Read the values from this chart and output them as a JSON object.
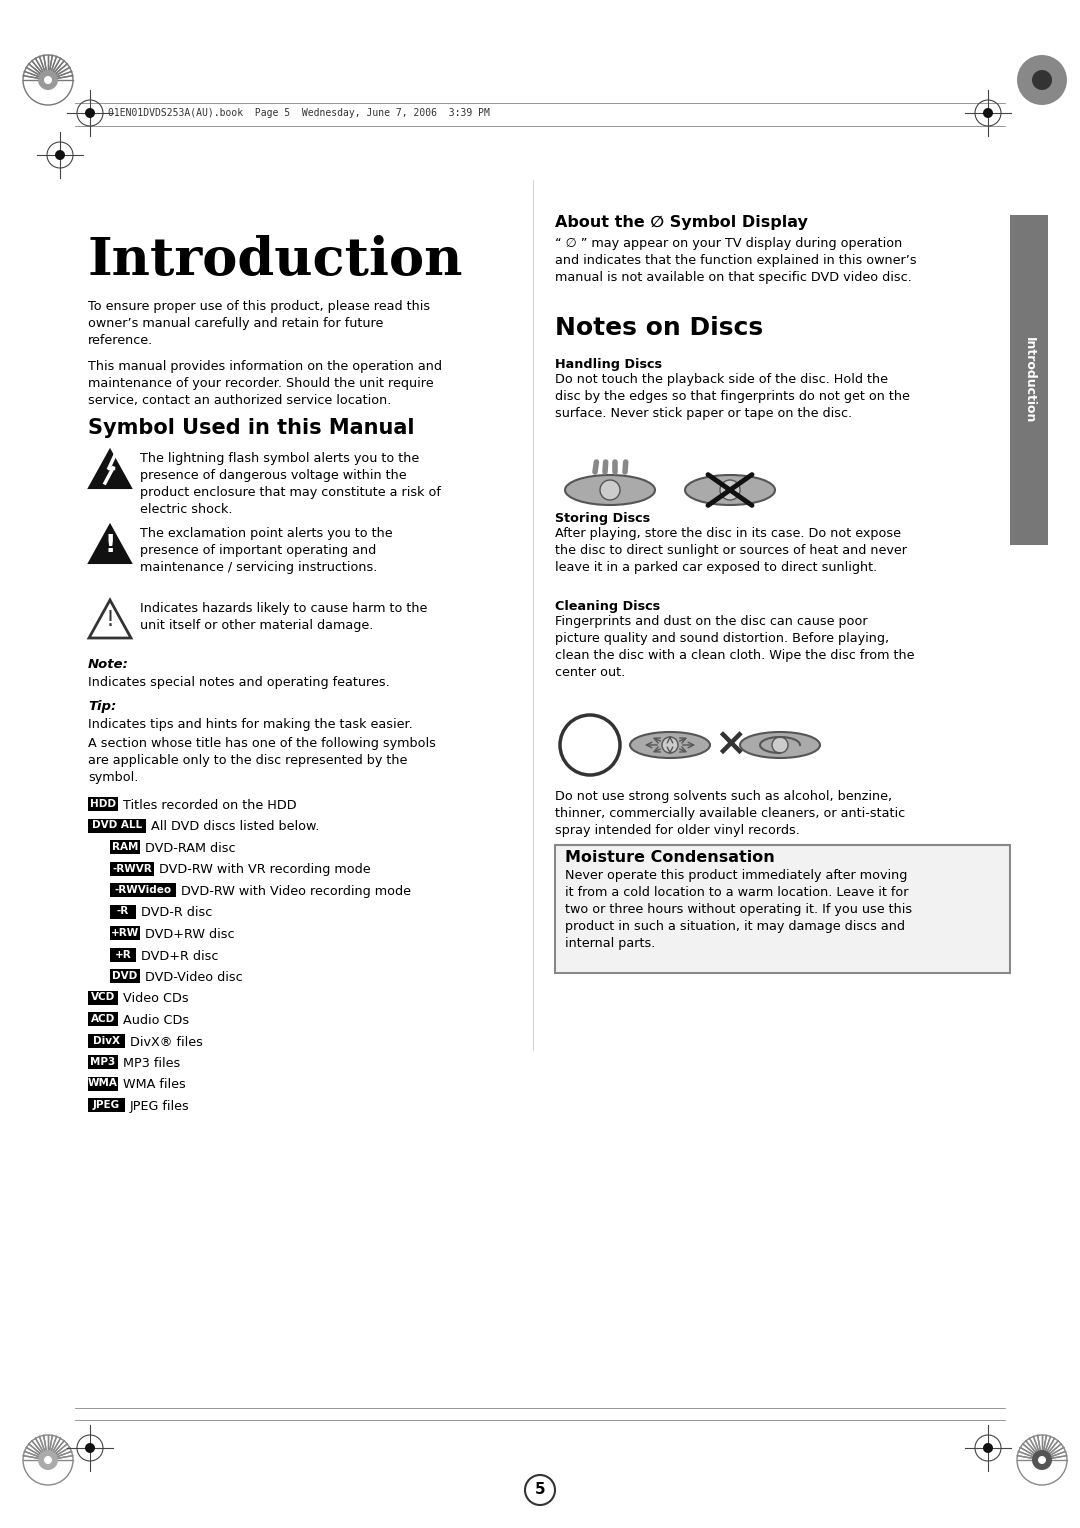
{
  "bg_color": "#ffffff",
  "page_header_text": "01EN01DVDS253A(AU).book  Page 5  Wednesday, June 7, 2006  3:39 PM",
  "main_title": "Introduction",
  "intro_para1": "To ensure proper use of this product, please read this\nowner’s manual carefully and retain for future\nreference.",
  "intro_para2": "This manual provides information on the operation and\nmaintenance of your recorder. Should the unit require\nservice, contact an authorized service location.",
  "section1_title": "Symbol Used in this Manual",
  "symbol1_text": "The lightning flash symbol alerts you to the\npresence of dangerous voltage within the\nproduct enclosure that may constitute a risk of\nelectric shock.",
  "symbol2_text": "The exclamation point alerts you to the\npresence of important operating and\nmaintenance / servicing instructions.",
  "symbol3_text": "Indicates hazards likely to cause harm to the\nunit itself or other material damage.",
  "note_label": "Note:",
  "note_text": "Indicates special notes and operating features.",
  "tip_label": "Tip:",
  "tip_text": "Indicates tips and hints for making the task easier.",
  "section_intro_text": "A section whose title has one of the following symbols\nare applicable only to the disc represented by the\nsymbol.",
  "disc_items": [
    {
      "badge": "HDD",
      "text": "Titles recorded on the HDD",
      "indent": 0
    },
    {
      "badge": "DVD ALL",
      "text": "All DVD discs listed below.",
      "indent": 0
    },
    {
      "badge": "RAM",
      "text": "DVD-RAM disc",
      "indent": 1
    },
    {
      "badge": "-RWVR",
      "text": "DVD-RW with VR recording mode",
      "indent": 1
    },
    {
      "badge": "-RWVideo",
      "text": "DVD-RW with Video recording mode",
      "indent": 1
    },
    {
      "badge": "-R",
      "text": "DVD-R disc",
      "indent": 1
    },
    {
      "badge": "+RW",
      "text": "DVD+RW disc",
      "indent": 1
    },
    {
      "badge": "+R",
      "text": "DVD+R disc",
      "indent": 1
    },
    {
      "badge": "DVD",
      "text": "DVD-Video disc",
      "indent": 1
    },
    {
      "badge": "VCD",
      "text": "Video CDs",
      "indent": 0
    },
    {
      "badge": "ACD",
      "text": "Audio CDs",
      "indent": 0
    },
    {
      "badge": "DivX",
      "text": "DivX® files",
      "indent": 0
    },
    {
      "badge": "MP3",
      "text": "MP3 files",
      "indent": 0
    },
    {
      "badge": "WMA",
      "text": "WMA files",
      "indent": 0
    },
    {
      "badge": "JPEG",
      "text": "JPEG files",
      "indent": 0
    }
  ],
  "right_section2_title": "About the ∅ Symbol Display",
  "right_section2_text": "“ ∅ ” may appear on your TV display during operation\nand indicates that the function explained in this owner’s\nmanual is not available on that specific DVD video disc.",
  "right_section3_title": "Notes on Discs",
  "handling_title": "Handling Discs",
  "handling_text": "Do not touch the playback side of the disc. Hold the\ndisc by the edges so that fingerprints do not get on the\nsurface. Never stick paper or tape on the disc.",
  "storing_title": "Storing Discs",
  "storing_text": "After playing, store the disc in its case. Do not expose\nthe disc to direct sunlight or sources of heat and never\nleave it in a parked car exposed to direct sunlight.",
  "cleaning_title": "Cleaning Discs",
  "cleaning_text": "Fingerprints and dust on the disc can cause poor\npicture quality and sound distortion. Before playing,\nclean the disc with a clean cloth. Wipe the disc from the\ncenter out.",
  "solvent_text": "Do not use strong solvents such as alcohol, benzine,\nthinner, commercially available cleaners, or anti-static\nspray intended for older vinyl records.",
  "moisture_title": "Moisture Condensation",
  "moisture_text": "Never operate this product immediately after moving\nit from a cold location to a warm location. Leave it for\ntwo or three hours without operating it. If you use this\nproduct in such a situation, it may damage discs and\ninternal parts.",
  "sidebar_text": "Introduction",
  "page_num": "5"
}
